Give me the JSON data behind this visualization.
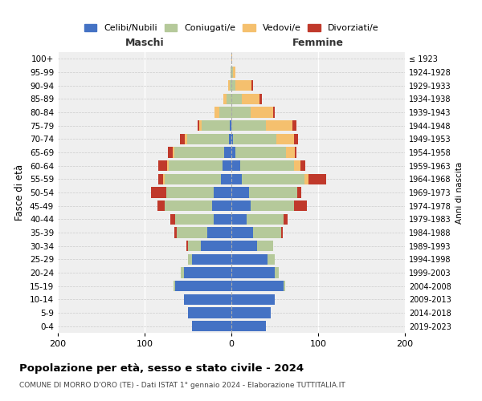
{
  "age_groups": [
    "0-4",
    "5-9",
    "10-14",
    "15-19",
    "20-24",
    "25-29",
    "30-34",
    "35-39",
    "40-44",
    "45-49",
    "50-54",
    "55-59",
    "60-64",
    "65-69",
    "70-74",
    "75-79",
    "80-84",
    "85-89",
    "90-94",
    "95-99",
    "100+"
  ],
  "birth_years": [
    "2019-2023",
    "2014-2018",
    "2009-2013",
    "2004-2008",
    "1999-2003",
    "1994-1998",
    "1989-1993",
    "1984-1988",
    "1979-1983",
    "1974-1978",
    "1969-1973",
    "1964-1968",
    "1959-1963",
    "1954-1958",
    "1949-1953",
    "1944-1948",
    "1939-1943",
    "1934-1938",
    "1929-1933",
    "1924-1928",
    "≤ 1923"
  ],
  "maschi_celibi": [
    45,
    50,
    55,
    65,
    55,
    45,
    35,
    28,
    20,
    22,
    20,
    12,
    10,
    8,
    3,
    2,
    0,
    0,
    0,
    0,
    0
  ],
  "maschi_coniugati": [
    0,
    0,
    0,
    2,
    3,
    5,
    15,
    35,
    45,
    55,
    55,
    65,
    62,
    58,
    48,
    32,
    14,
    6,
    2,
    1,
    0
  ],
  "maschi_vedovi": [
    0,
    0,
    0,
    0,
    0,
    0,
    0,
    0,
    0,
    0,
    0,
    2,
    2,
    2,
    3,
    3,
    5,
    3,
    2,
    0,
    0
  ],
  "maschi_divorziati": [
    0,
    0,
    0,
    0,
    0,
    0,
    2,
    3,
    5,
    8,
    18,
    5,
    10,
    5,
    5,
    2,
    0,
    0,
    0,
    0,
    0
  ],
  "femmine_celibi": [
    40,
    45,
    50,
    60,
    50,
    42,
    30,
    25,
    18,
    22,
    20,
    12,
    10,
    5,
    2,
    0,
    0,
    0,
    0,
    0,
    0
  ],
  "femmine_coniugati": [
    0,
    0,
    0,
    2,
    5,
    8,
    18,
    32,
    42,
    50,
    56,
    72,
    62,
    58,
    50,
    40,
    22,
    12,
    5,
    2,
    0
  ],
  "femmine_vedovi": [
    0,
    0,
    0,
    0,
    0,
    0,
    0,
    0,
    0,
    0,
    0,
    5,
    8,
    10,
    20,
    30,
    26,
    20,
    18,
    3,
    1
  ],
  "femmine_divorziati": [
    0,
    0,
    0,
    0,
    0,
    0,
    0,
    2,
    5,
    15,
    5,
    20,
    5,
    2,
    5,
    5,
    2,
    3,
    2,
    0,
    0
  ],
  "colors": {
    "celibi": "#4472c4",
    "coniugati": "#b5c99a",
    "vedovi": "#f5c06e",
    "divorziati": "#c0392b"
  },
  "xlim": 200,
  "title": "Popolazione per età, sesso e stato civile - 2024",
  "subtitle": "COMUNE DI MORRO D'ORO (TE) - Dati ISTAT 1° gennaio 2024 - Elaborazione TUTTITALIA.IT",
  "ylabel": "Fasce di età",
  "right_ylabel": "Anni di nascita",
  "maschi_label": "Maschi",
  "femmine_label": "Femmine",
  "legend_labels": [
    "Celibi/Nubili",
    "Coniugati/e",
    "Vedovi/e",
    "Divorziati/e"
  ],
  "background_color": "#ffffff",
  "plot_bg_color": "#efefef"
}
